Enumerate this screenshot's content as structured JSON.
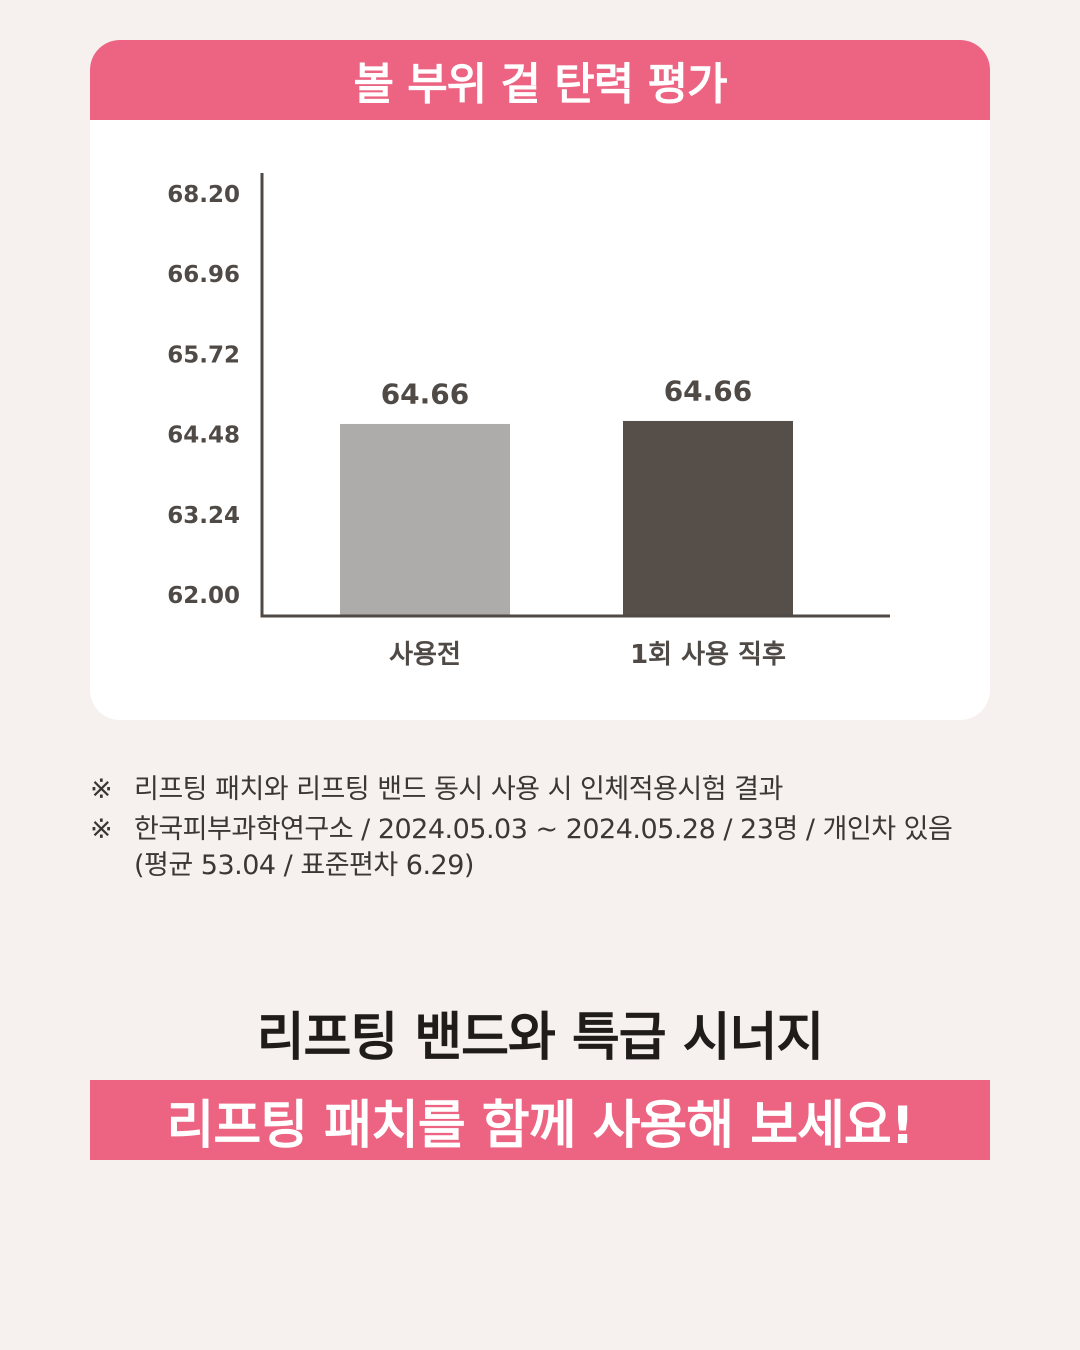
{
  "chart_data": {
    "type": "bar",
    "title": "볼 부위 겉 탄력 평가",
    "categories": [
      "사용전",
      "1회 사용 직후"
    ],
    "values": [
      64.66,
      64.66
    ],
    "data_labels": [
      "64.66",
      "64.66"
    ],
    "bar_colors": [
      "#adacaa",
      "#554e49"
    ],
    "ylim": [
      62.0,
      68.2
    ],
    "yticks": [
      62.0,
      63.24,
      64.48,
      65.72,
      66.96,
      68.2
    ],
    "ytick_labels": [
      "62.00",
      "63.24",
      "64.48",
      "65.72",
      "66.96",
      "68.20"
    ],
    "xlabel": "",
    "ylabel": "",
    "grid": false
  },
  "notes": {
    "mark": "※",
    "line1": "리프팅 패치와 리프팅 밴드 동시 사용 시 인체적용시험 결과",
    "line2a": "한국피부과학연구소 / 2024.05.03 ~ 2024.05.28 / 23명 / 개인차 있음",
    "line2b": "(평균 53.04 / 표준편차 6.29)"
  },
  "headline": "리프팅 밴드와 특급 시너지",
  "banner": "리프팅 패치를 함께 사용해 보세요!",
  "colors": {
    "accent": "#ec6482",
    "background": "#f6f1ef",
    "axis": "#4f4a46"
  }
}
